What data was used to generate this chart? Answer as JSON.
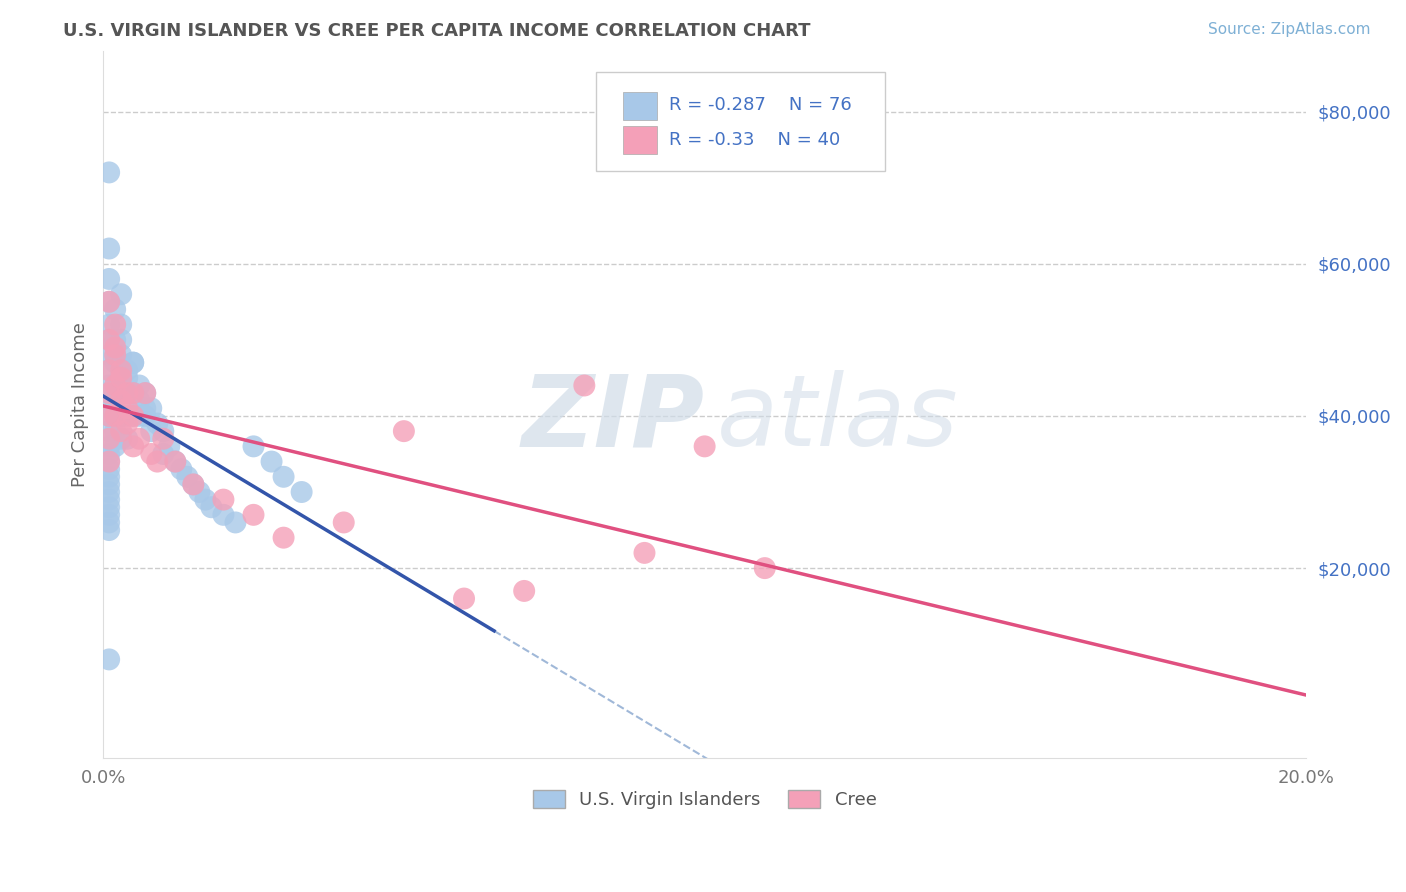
{
  "title": "U.S. VIRGIN ISLANDER VS CREE PER CAPITA INCOME CORRELATION CHART",
  "source": "Source: ZipAtlas.com",
  "ylabel": "Per Capita Income",
  "xlim": [
    0.0,
    0.2
  ],
  "ylim": [
    -5000,
    88000
  ],
  "yticks": [
    20000,
    40000,
    60000,
    80000
  ],
  "ytick_labels": [
    "$20,000",
    "$40,000",
    "$60,000",
    "$80,000"
  ],
  "xticks": [
    0.0,
    0.2
  ],
  "xtick_labels": [
    "0.0%",
    "20.0%"
  ],
  "legend_blue_label": "U.S. Virgin Islanders",
  "legend_pink_label": "Cree",
  "r_blue": -0.287,
  "n_blue": 76,
  "r_pink": -0.33,
  "n_pink": 40,
  "blue_color": "#A8C8E8",
  "pink_color": "#F4A0B8",
  "blue_line_color": "#3355AA",
  "pink_line_color": "#E05080",
  "dash_line_color": "#A0B8D8",
  "background_color": "#FFFFFF",
  "grid_color": "#CCCCCC",
  "title_color": "#555555",
  "axis_label_color": "#666666",
  "annotation_color": "#4472C4",
  "blue_points_x": [
    0.001,
    0.001,
    0.001,
    0.001,
    0.001,
    0.001,
    0.001,
    0.001,
    0.001,
    0.001,
    0.001,
    0.001,
    0.001,
    0.001,
    0.001,
    0.001,
    0.001,
    0.001,
    0.002,
    0.002,
    0.002,
    0.002,
    0.002,
    0.002,
    0.002,
    0.003,
    0.003,
    0.003,
    0.003,
    0.003,
    0.004,
    0.004,
    0.004,
    0.004,
    0.005,
    0.005,
    0.005,
    0.006,
    0.006,
    0.007,
    0.007,
    0.008,
    0.008,
    0.009,
    0.01,
    0.01,
    0.011,
    0.012,
    0.013,
    0.014,
    0.015,
    0.016,
    0.017,
    0.018,
    0.02,
    0.022,
    0.025,
    0.028,
    0.03,
    0.033,
    0.001,
    0.002,
    0.002,
    0.003,
    0.003,
    0.004,
    0.005,
    0.005,
    0.006,
    0.007,
    0.001,
    0.001,
    0.001,
    0.001,
    0.001,
    0.001
  ],
  "blue_points_y": [
    62000,
    58000,
    55000,
    52000,
    50000,
    48000,
    46000,
    44000,
    42000,
    40000,
    38000,
    36000,
    34000,
    32000,
    30000,
    28000,
    26000,
    8000,
    50000,
    47000,
    44000,
    42000,
    40000,
    38000,
    36000,
    52000,
    48000,
    44000,
    40000,
    37000,
    46000,
    43000,
    40000,
    37000,
    47000,
    43000,
    40000,
    44000,
    40000,
    43000,
    40000,
    41000,
    38000,
    39000,
    38000,
    35000,
    36000,
    34000,
    33000,
    32000,
    31000,
    30000,
    29000,
    28000,
    27000,
    26000,
    36000,
    34000,
    32000,
    30000,
    72000,
    54000,
    48000,
    56000,
    50000,
    45000,
    47000,
    43000,
    42000,
    41000,
    35000,
    33000,
    31000,
    29000,
    27000,
    25000
  ],
  "pink_points_x": [
    0.001,
    0.001,
    0.001,
    0.001,
    0.001,
    0.001,
    0.002,
    0.002,
    0.002,
    0.003,
    0.003,
    0.003,
    0.004,
    0.004,
    0.005,
    0.005,
    0.006,
    0.007,
    0.008,
    0.009,
    0.01,
    0.012,
    0.015,
    0.02,
    0.025,
    0.03,
    0.04,
    0.05,
    0.06,
    0.07,
    0.08,
    0.09,
    0.1,
    0.11,
    0.002,
    0.003,
    0.004,
    0.005,
    0.001,
    0.002
  ],
  "pink_points_y": [
    50000,
    46000,
    43000,
    40000,
    37000,
    34000,
    48000,
    44000,
    40000,
    46000,
    42000,
    38000,
    43000,
    39000,
    40000,
    36000,
    37000,
    43000,
    35000,
    34000,
    37000,
    34000,
    31000,
    29000,
    27000,
    24000,
    26000,
    38000,
    16000,
    17000,
    44000,
    22000,
    36000,
    20000,
    52000,
    45000,
    41000,
    43000,
    55000,
    49000
  ],
  "blue_line_x_end": 0.065,
  "dash_line_x_start": 0.065,
  "dash_line_x_end": 0.2
}
